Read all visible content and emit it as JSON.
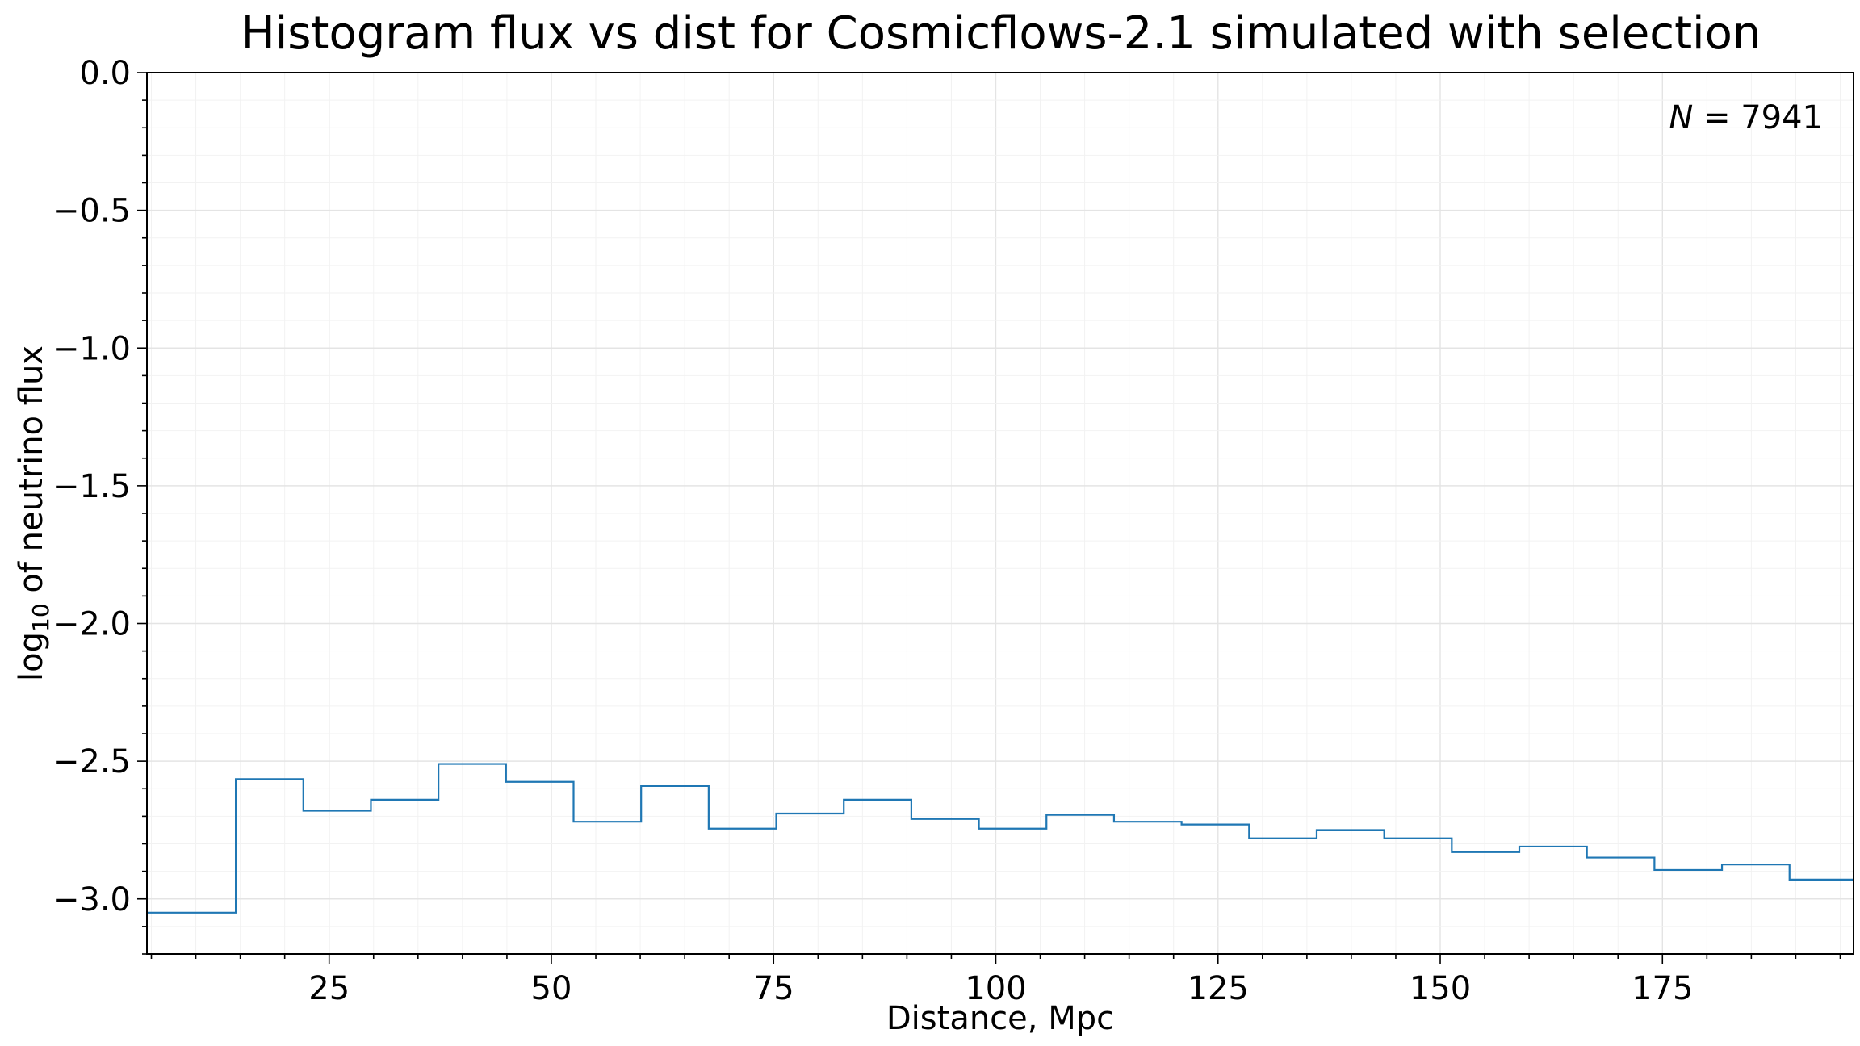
{
  "chart_data": {
    "type": "line",
    "subtype": "step-histogram",
    "title": "Histogram flux vs dist for Cosmicflows-2.1 simulated with selection",
    "xlabel": "Distance, Mpc",
    "ylabel_main": "log",
    "ylabel_sub": "10",
    "ylabel_rest": " of neutrino flux",
    "annotation_var": "N",
    "annotation_eq": " = ",
    "annotation_val": "7941",
    "xlim": [
      4.5,
      196.5
    ],
    "ylim": [
      -3.2,
      0.0
    ],
    "xticks": [
      25,
      50,
      75,
      100,
      125,
      150,
      175
    ],
    "xtick_labels": [
      "25",
      "50",
      "75",
      "100",
      "125",
      "150",
      "175"
    ],
    "yticks": [
      0.0,
      -0.5,
      -1.0,
      -1.5,
      -2.0,
      -2.5,
      -3.0
    ],
    "ytick_labels": [
      "0.0",
      "−0.5",
      "−1.0",
      "−1.5",
      "−2.0",
      "−2.5",
      "−3.0"
    ],
    "grid": true,
    "line_color": "#1f77b4",
    "bin_edges": [
      4.5,
      14.5,
      22.1,
      29.7,
      37.3,
      44.9,
      52.5,
      60.1,
      67.7,
      75.3,
      82.9,
      90.5,
      98.1,
      105.7,
      113.3,
      120.9,
      128.5,
      136.1,
      143.7,
      151.3,
      158.9,
      166.5,
      174.1,
      181.7,
      189.3,
      196.5
    ],
    "values": [
      -3.05,
      -2.565,
      -2.68,
      -2.64,
      -2.51,
      -2.575,
      -2.72,
      -2.59,
      -2.745,
      -2.69,
      -2.64,
      -2.71,
      -2.745,
      -2.695,
      -2.72,
      -2.73,
      -2.78,
      -2.75,
      -2.78,
      -2.83,
      -2.81,
      -2.85,
      -2.895,
      -2.875,
      -2.93
    ]
  }
}
